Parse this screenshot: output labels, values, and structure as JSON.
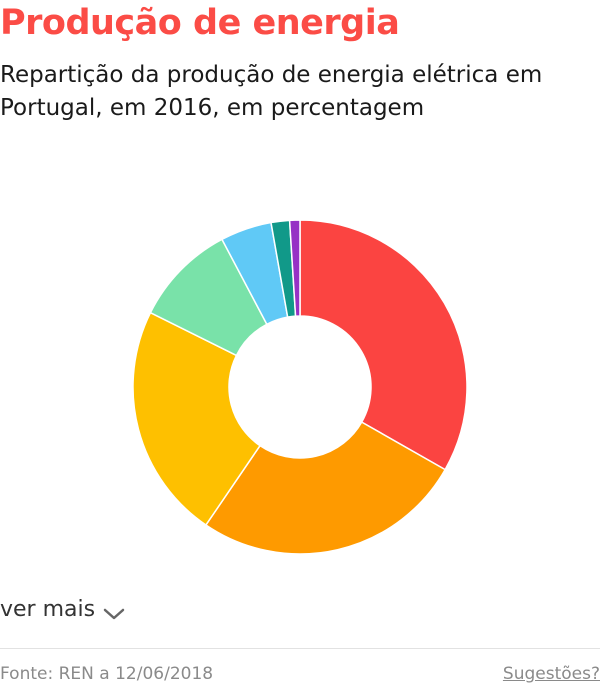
{
  "header": {
    "title": "Produção de energia",
    "subtitle": "Repartição da produção de energia elétrica em Portugal, em 2016, em percentagem"
  },
  "controls": {
    "ver_mais_label": "ver mais",
    "chevron_icon": "chevron-down-icon"
  },
  "footer": {
    "source": "Fonte: REN a 12/06/2018",
    "suggest_label": "Sugestões?"
  },
  "colors": {
    "title": "#fb4c46",
    "slices": [
      "#fb4441",
      "#fe9a00",
      "#fec000",
      "#79e2a9",
      "#60c9f6",
      "#119989",
      "#9631c5"
    ]
  },
  "chart_data": {
    "type": "pie",
    "style": "donut",
    "title": "Produção de energia",
    "subtitle": "Repartição da produção de energia elétrica em Portugal, em 2016, em percentagem",
    "legend": "none",
    "values": [
      33.5,
      26.5,
      23,
      10,
      5,
      1.8,
      1
    ]
  }
}
